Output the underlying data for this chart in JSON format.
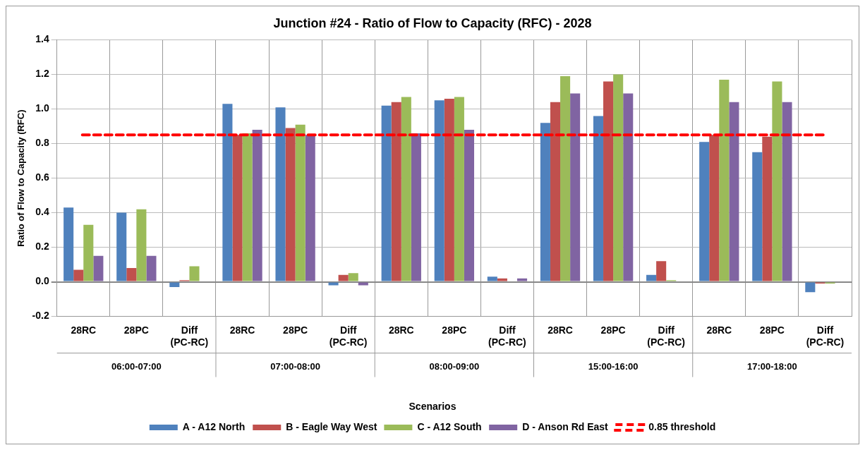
{
  "chart_data": {
    "type": "bar",
    "title": "Junction #24 - Ratio of Flow to Capacity (RFC) - 2028",
    "ylabel": "Ratio of Flow to Capacity (RFC)",
    "legend_title": "Scenarios",
    "categories": [
      "28RC",
      "28PC",
      "Diff (PC-RC)",
      "28RC",
      "28PC",
      "Diff (PC-RC)",
      "28RC",
      "28PC",
      "Diff (PC-RC)",
      "28RC",
      "28PC",
      "Diff (PC-RC)",
      "28RC",
      "28PC",
      "Diff (PC-RC)"
    ],
    "annotations": [
      "06:00-07:00",
      "07:00-08:00",
      "08:00-09:00",
      "15:00-16:00",
      "17:00-18:00"
    ],
    "series": [
      {
        "name": "A - A12 North",
        "color": "#4f81bd",
        "values": [
          0.43,
          0.4,
          -0.03,
          1.03,
          1.01,
          -0.02,
          1.02,
          1.05,
          0.03,
          0.92,
          0.96,
          0.04,
          0.81,
          0.75,
          -0.06
        ]
      },
      {
        "name": "B - Eagle Way West",
        "color": "#c0504d",
        "values": [
          0.07,
          0.08,
          0.01,
          0.85,
          0.89,
          0.04,
          1.04,
          1.06,
          0.02,
          1.04,
          1.16,
          0.12,
          0.85,
          0.84,
          -0.01
        ]
      },
      {
        "name": "C - A12 South",
        "color": "#9bbb59",
        "values": [
          0.33,
          0.42,
          0.09,
          0.86,
          0.91,
          0.05,
          1.07,
          1.07,
          0.0,
          1.19,
          1.2,
          0.01,
          1.17,
          1.16,
          -0.01
        ]
      },
      {
        "name": "D - Anson Rd East",
        "color": "#8064a2",
        "values": [
          0.15,
          0.15,
          0.0,
          0.88,
          0.85,
          -0.02,
          0.86,
          0.88,
          0.02,
          1.09,
          1.09,
          0.0,
          1.04,
          1.04,
          0.0
        ]
      }
    ],
    "ref_lines": [
      {
        "axis": "y",
        "value": 0.85,
        "label": "0.85 threshold",
        "color": "#ff0000",
        "line_style": "dashed"
      }
    ],
    "ylim": [
      -0.2,
      1.4
    ],
    "yticks": [
      -0.2,
      {
        "value": 0,
        "label": "0.0"
      },
      0.2,
      0.4,
      0.6,
      0.8,
      {
        "value": 1,
        "label": "1.0"
      },
      1.2,
      1.4
    ],
    "grid": true,
    "legend": "bottom"
  }
}
